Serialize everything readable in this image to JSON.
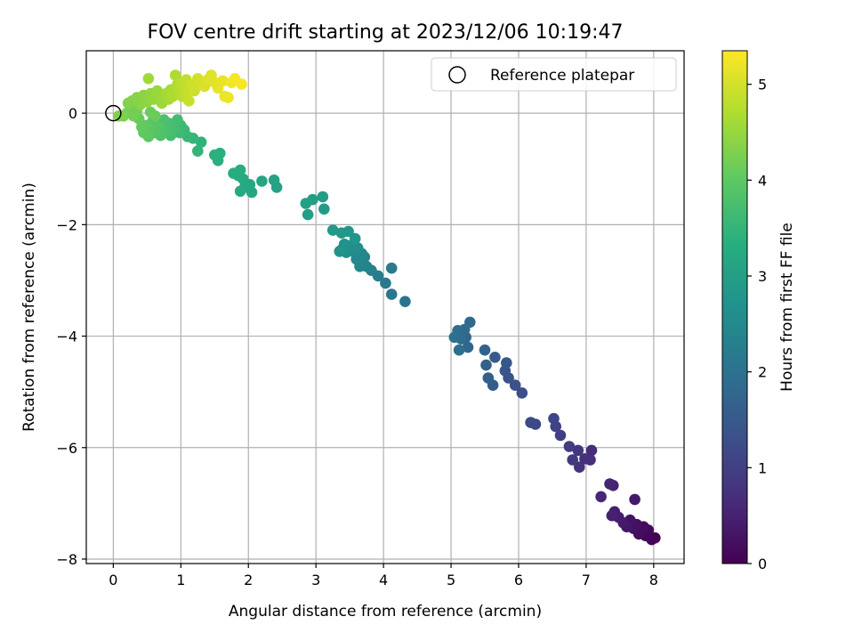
{
  "chart_data": {
    "type": "scatter",
    "title": "FOV centre drift starting at 2023/12/06 10:19:47",
    "xlabel": "Angular distance from reference (arcmin)",
    "ylabel": "Rotation from reference (arcmin)",
    "xlim": [
      -0.4,
      8.45
    ],
    "ylim": [
      -8.08,
      1.12
    ],
    "xticks": [
      0,
      1,
      2,
      3,
      4,
      5,
      6,
      7,
      8
    ],
    "xtick_labels": [
      "0",
      "1",
      "2",
      "3",
      "4",
      "5",
      "6",
      "7",
      "8"
    ],
    "yticks": [
      0,
      -2,
      -4,
      -6,
      -8
    ],
    "ytick_labels": [
      "0",
      "−2",
      "−4",
      "−6",
      "−8"
    ],
    "grid": true,
    "colormap": "viridis",
    "colorbar": {
      "label": "Hours from first FF file",
      "range": [
        0,
        5.35
      ],
      "ticks": [
        0,
        1,
        2,
        3,
        4,
        5
      ],
      "tick_labels": [
        "0",
        "1",
        "2",
        "3",
        "4",
        "5"
      ]
    },
    "reference": {
      "name": "Reference platepar",
      "x": 0,
      "y": 0
    },
    "legend": {
      "placement": "top-right",
      "entries": [
        "Reference platepar"
      ]
    },
    "points": [
      [
        8.02,
        -7.62,
        0.02
      ],
      [
        7.97,
        -7.65,
        0.05
      ],
      [
        7.88,
        -7.58,
        0.08
      ],
      [
        7.92,
        -7.48,
        0.12
      ],
      [
        7.85,
        -7.42,
        0.15
      ],
      [
        7.78,
        -7.55,
        0.18
      ],
      [
        7.75,
        -7.38,
        0.22
      ],
      [
        7.7,
        -7.45,
        0.25
      ],
      [
        7.65,
        -7.3,
        0.28
      ],
      [
        7.6,
        -7.42,
        0.32
      ],
      [
        7.72,
        -6.93,
        0.35
      ],
      [
        7.55,
        -7.35,
        0.38
      ],
      [
        7.48,
        -7.25,
        0.42
      ],
      [
        7.42,
        -7.15,
        0.45
      ],
      [
        7.38,
        -7.22,
        0.48
      ],
      [
        7.4,
        -6.68,
        0.52
      ],
      [
        7.35,
        -6.65,
        0.55
      ],
      [
        7.22,
        -6.88,
        0.58
      ],
      [
        7.08,
        -6.05,
        0.65
      ],
      [
        7.06,
        -6.22,
        0.7
      ],
      [
        6.98,
        -6.2,
        0.75
      ],
      [
        6.9,
        -6.35,
        0.8
      ],
      [
        6.88,
        -6.05,
        0.85
      ],
      [
        6.8,
        -6.22,
        0.9
      ],
      [
        6.75,
        -5.98,
        0.95
      ],
      [
        6.62,
        -5.78,
        1.0
      ],
      [
        6.55,
        -5.62,
        1.05
      ],
      [
        6.52,
        -5.48,
        1.1
      ],
      [
        6.25,
        -5.58,
        1.15
      ],
      [
        6.18,
        -5.55,
        1.2
      ],
      [
        6.05,
        -5.02,
        1.25
      ],
      [
        5.95,
        -4.88,
        1.3
      ],
      [
        5.85,
        -4.75,
        1.35
      ],
      [
        5.8,
        -4.62,
        1.4
      ],
      [
        5.82,
        -4.48,
        1.45
      ],
      [
        5.65,
        -4.38,
        1.5
      ],
      [
        5.62,
        -4.88,
        1.55
      ],
      [
        5.55,
        -4.75,
        1.6
      ],
      [
        5.52,
        -4.52,
        1.65
      ],
      [
        5.5,
        -4.25,
        1.7
      ],
      [
        5.25,
        -4.2,
        1.75
      ],
      [
        5.22,
        -4.02,
        1.78
      ],
      [
        5.28,
        -3.75,
        1.82
      ],
      [
        5.2,
        -3.88,
        1.85
      ],
      [
        5.15,
        -4.05,
        1.88
      ],
      [
        5.12,
        -4.25,
        1.92
      ],
      [
        5.1,
        -3.9,
        1.95
      ],
      [
        5.05,
        -4.02,
        1.98
      ],
      [
        4.32,
        -3.38,
        2.05
      ],
      [
        4.12,
        -3.25,
        2.1
      ],
      [
        4.03,
        -3.05,
        2.15
      ],
      [
        4.12,
        -2.78,
        2.2
      ],
      [
        3.92,
        -2.92,
        2.25
      ],
      [
        3.82,
        -2.82,
        2.3
      ],
      [
        3.75,
        -2.75,
        2.35
      ],
      [
        3.72,
        -2.58,
        2.4
      ],
      [
        3.65,
        -2.75,
        2.42
      ],
      [
        3.68,
        -2.52,
        2.45
      ],
      [
        3.6,
        -2.62,
        2.5
      ],
      [
        3.55,
        -2.48,
        2.55
      ],
      [
        3.62,
        -2.42,
        2.58
      ],
      [
        3.5,
        -2.38,
        2.62
      ],
      [
        3.45,
        -2.5,
        2.65
      ],
      [
        3.42,
        -2.35,
        2.7
      ],
      [
        3.38,
        -2.45,
        2.72
      ],
      [
        3.35,
        -2.48,
        2.75
      ],
      [
        3.48,
        -2.12,
        2.78
      ],
      [
        3.58,
        -2.25,
        2.8
      ],
      [
        3.38,
        -2.15,
        2.82
      ],
      [
        3.25,
        -2.1,
        2.85
      ],
      [
        3.12,
        -1.72,
        2.9
      ],
      [
        3.1,
        -1.5,
        2.92
      ],
      [
        2.95,
        -1.55,
        2.95
      ],
      [
        2.88,
        -1.82,
        2.98
      ],
      [
        2.85,
        -1.62,
        3.0
      ],
      [
        2.42,
        -1.33,
        3.05
      ],
      [
        2.38,
        -1.2,
        3.1
      ],
      [
        2.2,
        -1.22,
        3.12
      ],
      [
        2.05,
        -1.42,
        3.15
      ],
      [
        2.02,
        -1.28,
        3.18
      ],
      [
        1.95,
        -1.32,
        3.2
      ],
      [
        1.88,
        -1.4,
        3.22
      ],
      [
        1.92,
        -1.18,
        3.25
      ],
      [
        1.85,
        -1.12,
        3.28
      ],
      [
        1.88,
        -1.02,
        3.3
      ],
      [
        1.78,
        -1.08,
        3.32
      ],
      [
        1.58,
        -0.72,
        3.35
      ],
      [
        1.55,
        -0.85,
        3.38
      ],
      [
        1.5,
        -0.75,
        3.4
      ],
      [
        1.3,
        -0.52,
        3.45
      ],
      [
        1.25,
        -0.68,
        3.48
      ],
      [
        1.18,
        -0.45,
        3.52
      ],
      [
        1.1,
        -0.42,
        3.55
      ],
      [
        1.05,
        -0.3,
        3.58
      ],
      [
        1.0,
        -0.22,
        3.6
      ],
      [
        0.98,
        -0.35,
        3.62
      ],
      [
        0.92,
        -0.28,
        3.65
      ],
      [
        0.95,
        -0.12,
        3.68
      ],
      [
        0.88,
        -0.25,
        3.7
      ],
      [
        0.85,
        -0.4,
        3.72
      ],
      [
        0.82,
        -0.18,
        3.75
      ],
      [
        0.78,
        -0.32,
        3.78
      ],
      [
        0.75,
        -0.12,
        3.8
      ],
      [
        0.72,
        -0.28,
        3.82
      ],
      [
        0.7,
        -0.4,
        3.85
      ],
      [
        0.65,
        -0.22,
        3.88
      ],
      [
        0.62,
        -0.35,
        3.9
      ],
      [
        0.58,
        -0.15,
        3.92
      ],
      [
        0.55,
        -0.3,
        3.95
      ],
      [
        0.52,
        -0.42,
        3.98
      ],
      [
        0.48,
        -0.22,
        4.0
      ],
      [
        0.45,
        -0.35,
        4.02
      ],
      [
        0.42,
        -0.25,
        4.05
      ],
      [
        0.38,
        -0.1,
        4.08
      ],
      [
        0.62,
        -0.05,
        4.1
      ],
      [
        0.55,
        0.02,
        4.12
      ],
      [
        0.35,
        0.05,
        4.15
      ],
      [
        0.3,
        -0.05,
        4.18
      ],
      [
        0.25,
        0.1,
        4.2
      ],
      [
        0.2,
        0.0,
        4.22
      ],
      [
        0.15,
        -0.05,
        4.25
      ],
      [
        0.08,
        -0.05,
        4.28
      ],
      [
        0.22,
        0.18,
        4.3
      ],
      [
        0.28,
        0.22,
        4.32
      ],
      [
        0.35,
        0.28,
        4.35
      ],
      [
        0.4,
        0.15,
        4.38
      ],
      [
        0.45,
        0.32,
        4.4
      ],
      [
        0.5,
        0.2,
        4.42
      ],
      [
        0.55,
        0.35,
        4.45
      ],
      [
        0.6,
        0.25,
        4.48
      ],
      [
        0.65,
        0.4,
        4.5
      ],
      [
        0.7,
        0.3,
        4.52
      ],
      [
        0.72,
        0.18,
        4.55
      ],
      [
        0.52,
        0.62,
        4.58
      ],
      [
        0.78,
        0.35,
        4.6
      ],
      [
        0.82,
        0.25,
        4.62
      ],
      [
        0.85,
        0.42,
        4.65
      ],
      [
        0.88,
        0.3,
        4.68
      ],
      [
        0.92,
        0.68,
        4.7
      ],
      [
        0.95,
        0.52,
        4.72
      ],
      [
        0.98,
        0.4,
        4.75
      ],
      [
        1.0,
        0.55,
        4.78
      ],
      [
        1.02,
        0.3,
        4.8
      ],
      [
        1.05,
        0.45,
        4.82
      ],
      [
        1.08,
        0.6,
        4.85
      ],
      [
        1.1,
        0.38,
        4.88
      ],
      [
        1.12,
        0.22,
        4.9
      ],
      [
        1.15,
        0.5,
        4.92
      ],
      [
        1.2,
        0.4,
        4.95
      ],
      [
        1.25,
        0.62,
        4.98
      ],
      [
        1.3,
        0.55,
        5.0
      ],
      [
        1.35,
        0.48,
        5.05
      ],
      [
        1.4,
        0.6,
        5.08
      ],
      [
        1.45,
        0.68,
        5.1
      ],
      [
        1.5,
        0.55,
        5.12
      ],
      [
        1.55,
        0.45,
        5.15
      ],
      [
        1.62,
        0.58,
        5.18
      ],
      [
        1.65,
        0.3,
        5.2
      ],
      [
        1.7,
        0.28,
        5.22
      ],
      [
        1.75,
        0.55,
        5.25
      ],
      [
        1.8,
        0.62,
        5.28
      ],
      [
        1.9,
        0.52,
        5.3
      ]
    ]
  }
}
